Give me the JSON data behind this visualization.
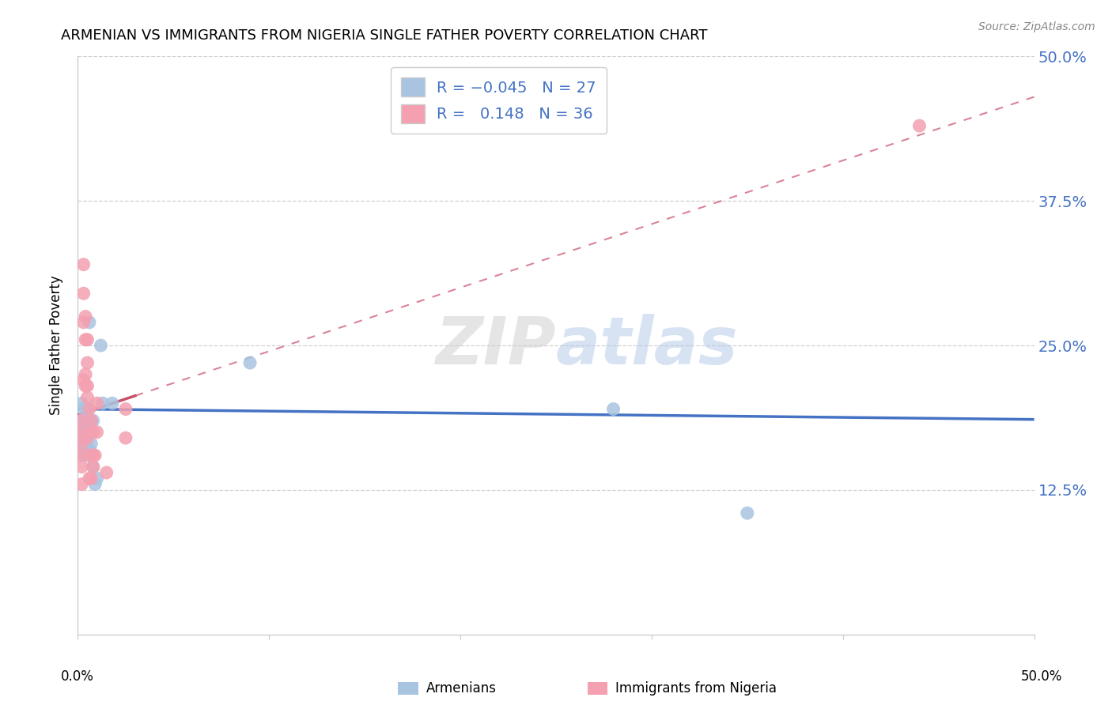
{
  "title": "ARMENIAN VS IMMIGRANTS FROM NIGERIA SINGLE FATHER POVERTY CORRELATION CHART",
  "source": "Source: ZipAtlas.com",
  "ylabel": "Single Father Poverty",
  "yticks": [
    0.0,
    0.125,
    0.25,
    0.375,
    0.5
  ],
  "ytick_labels": [
    "",
    "12.5%",
    "25.0%",
    "37.5%",
    "50.0%"
  ],
  "xlim": [
    0.0,
    0.5
  ],
  "ylim": [
    0.0,
    0.5
  ],
  "watermark_zip": "ZIP",
  "watermark_atlas": "atlas",
  "color_armenian": "#a8c4e0",
  "color_nigeria": "#f4a0b0",
  "line_color_armenian": "#4472c4",
  "line_color_nigeria": "#c9506a",
  "armenian_x": [
    0.001,
    0.002,
    0.002,
    0.002,
    0.003,
    0.003,
    0.003,
    0.004,
    0.004,
    0.005,
    0.005,
    0.005,
    0.006,
    0.006,
    0.006,
    0.007,
    0.007,
    0.008,
    0.008,
    0.009,
    0.01,
    0.012,
    0.013,
    0.018,
    0.09,
    0.28,
    0.35
  ],
  "armenian_y": [
    0.175,
    0.185,
    0.2,
    0.165,
    0.195,
    0.175,
    0.155,
    0.185,
    0.165,
    0.195,
    0.175,
    0.155,
    0.27,
    0.185,
    0.16,
    0.185,
    0.165,
    0.185,
    0.145,
    0.13,
    0.135,
    0.25,
    0.2,
    0.2,
    0.235,
    0.195,
    0.105
  ],
  "nigeria_x": [
    0.001,
    0.001,
    0.002,
    0.002,
    0.002,
    0.002,
    0.003,
    0.003,
    0.003,
    0.003,
    0.004,
    0.004,
    0.004,
    0.004,
    0.005,
    0.005,
    0.005,
    0.005,
    0.005,
    0.006,
    0.006,
    0.006,
    0.006,
    0.007,
    0.007,
    0.007,
    0.008,
    0.008,
    0.008,
    0.009,
    0.01,
    0.01,
    0.015,
    0.025,
    0.025,
    0.44
  ],
  "nigeria_y": [
    0.175,
    0.155,
    0.185,
    0.165,
    0.145,
    0.13,
    0.32,
    0.295,
    0.27,
    0.22,
    0.275,
    0.255,
    0.225,
    0.215,
    0.255,
    0.235,
    0.215,
    0.205,
    0.17,
    0.195,
    0.175,
    0.155,
    0.135,
    0.185,
    0.155,
    0.135,
    0.155,
    0.145,
    0.175,
    0.155,
    0.2,
    0.175,
    0.14,
    0.195,
    0.17,
    0.44
  ],
  "r_armenian": -0.045,
  "r_nigeria": 0.148
}
